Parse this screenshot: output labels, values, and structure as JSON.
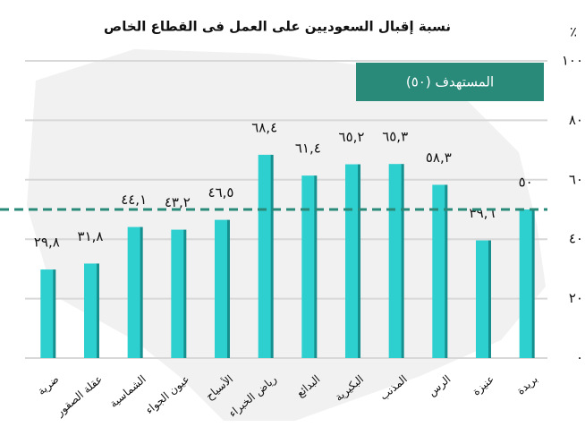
{
  "chart_data": {
    "type": "bar",
    "title": "نسبة إقبال السعوديين على العمل فى القطاع الخاص",
    "unit": "٪",
    "categories": [
      "ضرية",
      "عقلة الصقور",
      "الشماسية",
      "عيون الجواء",
      "الأسياح",
      "رياض الخبراء",
      "البدائع",
      "البكيرية",
      "المذنب",
      "الرس",
      "عنيزة",
      "بريدة"
    ],
    "values": [
      29.8,
      31.8,
      44.1,
      43.2,
      46.5,
      68.4,
      61.4,
      65.2,
      65.3,
      58.3,
      39.6,
      50
    ],
    "value_labels": [
      "٢٩,٨",
      "٣١,٨",
      "٤٤,١",
      "٤٣,٢",
      "٤٦,٥",
      "٦٨,٤",
      "٦١,٤",
      "٦٥,٢",
      "٦٥,٣",
      "٥٨,٣",
      "٣٩,٦",
      "٥٠"
    ],
    "color": "#2ecfcf",
    "target": {
      "value": 50,
      "label": "المستهدف (٥٠)",
      "color": "#2a8a7a"
    },
    "ylim": [
      0,
      100
    ],
    "yticks": [
      {
        "value": 0,
        "label": "٠"
      },
      {
        "value": 20,
        "label": "٢٠"
      },
      {
        "value": 40,
        "label": "٤٠"
      },
      {
        "value": 60,
        "label": "٦٠"
      },
      {
        "value": 80,
        "label": "٨٠"
      },
      {
        "value": 100,
        "label": "١٠٠"
      }
    ],
    "grid": true
  }
}
